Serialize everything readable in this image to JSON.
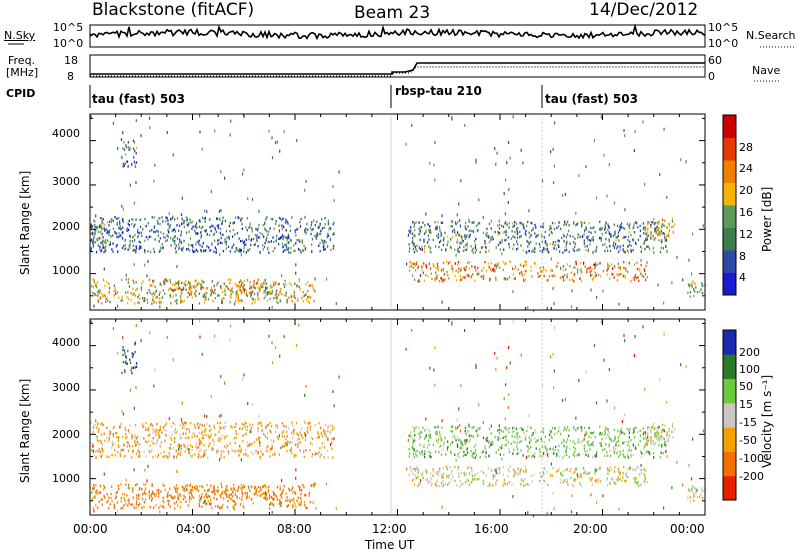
{
  "header": {
    "station": "Blackstone (fitACF)",
    "beam": "Beam 23",
    "date": "14/Dec/2012"
  },
  "noise_panel": {
    "left_label": "N.Sky",
    "right_label": "N.Search",
    "left_ticks": [
      "10^5",
      "10^0"
    ],
    "right_ticks": [
      "10^5",
      "10^0"
    ]
  },
  "freq_panel": {
    "left_label_line1": "Freq.",
    "left_label_line2": "[MHz]",
    "right_label": "Nave",
    "left_ticks": [
      "18",
      "8"
    ],
    "right_ticks": [
      "60",
      "0"
    ]
  },
  "cpid": {
    "label": "CPID",
    "segments": [
      {
        "name": "tau (fast) 503",
        "start_hour": 0.0
      },
      {
        "name": "rbsp-tau 210",
        "start_hour": 12.0
      },
      {
        "name": "tau (fast) 503",
        "start_hour": 18.0
      }
    ]
  },
  "power_panel": {
    "ylabel": "Slant Range [km]",
    "yticks": [
      "4000",
      "3000",
      "2000",
      "1000"
    ],
    "colorbar_label": "Power [dB]",
    "colorbar_ticks": [
      "28",
      "24",
      "20",
      "16",
      "12",
      "8",
      "4"
    ]
  },
  "velocity_panel": {
    "ylabel": "Slant Range [km]",
    "yticks": [
      "4000",
      "3000",
      "2000",
      "1000"
    ],
    "colorbar_label": "Velocity [m s⁻¹]",
    "colorbar_ticks": [
      "200",
      "100",
      "50",
      "15",
      "-15",
      "-50",
      "-100",
      "-200"
    ]
  },
  "xaxis": {
    "label": "Time UT",
    "ticks": [
      "00:00",
      "04:00",
      "08:00",
      "12:00",
      "16:00",
      "20:00",
      "00:00"
    ]
  },
  "chart_data": [
    {
      "type": "heatmap",
      "title": "Blackstone (fitACF) Beam 23 14/Dec/2012",
      "xlabel": "Time UT",
      "ylabel": "Slant Range [km]",
      "xlim_hours": [
        0,
        24
      ],
      "ylim_km": [
        180,
        4600
      ],
      "colorbar": "Power [dB]",
      "clim": [
        0,
        30
      ],
      "regions": [
        {
          "t0": 0.0,
          "t1": 8.8,
          "r0": 350,
          "r1": 900,
          "value": 16
        },
        {
          "t0": 3.2,
          "t1": 7.2,
          "r0": 550,
          "r1": 850,
          "value": 19
        },
        {
          "t0": 0.0,
          "t1": 9.5,
          "r0": 1500,
          "r1": 2300,
          "value": 8
        },
        {
          "t0": 0.0,
          "t1": 0.8,
          "r0": 1700,
          "r1": 2200,
          "value": 12
        },
        {
          "t0": 1.2,
          "t1": 1.8,
          "r0": 3400,
          "r1": 4100,
          "value": 9
        },
        {
          "t0": 12.4,
          "t1": 21.8,
          "r0": 850,
          "r1": 1300,
          "value": 20
        },
        {
          "t0": 12.4,
          "t1": 22.5,
          "r0": 1500,
          "r1": 2200,
          "value": 9
        },
        {
          "t0": 21.6,
          "t1": 22.8,
          "r0": 1800,
          "r1": 2300,
          "value": 18
        },
        {
          "t0": 23.3,
          "t1": 24.0,
          "r0": 500,
          "r1": 900,
          "value": 14
        }
      ]
    },
    {
      "type": "heatmap",
      "title": "Blackstone (fitACF) Beam 23 14/Dec/2012",
      "xlabel": "Time UT",
      "ylabel": "Slant Range [km]",
      "xlim_hours": [
        0,
        24
      ],
      "ylim_km": [
        180,
        4600
      ],
      "colorbar": "Velocity [m s⁻¹]",
      "clim": [
        -250,
        250
      ],
      "regions": [
        {
          "t0": 0.0,
          "t1": 8.8,
          "r0": 350,
          "r1": 900,
          "value": -60
        },
        {
          "t0": 3.2,
          "t1": 7.2,
          "r0": 550,
          "r1": 850,
          "value": -70
        },
        {
          "t0": 0.0,
          "t1": 9.5,
          "r0": 1500,
          "r1": 2300,
          "value": -30
        },
        {
          "t0": 1.2,
          "t1": 1.8,
          "r0": 3400,
          "r1": 4100,
          "value": 150
        },
        {
          "t0": 12.4,
          "t1": 21.8,
          "r0": 850,
          "r1": 1300,
          "value": 0
        },
        {
          "t0": 12.4,
          "t1": 22.5,
          "r0": 1500,
          "r1": 2200,
          "value": 30
        },
        {
          "t0": 21.6,
          "t1": 22.8,
          "r0": 1800,
          "r1": 2300,
          "value": 0
        },
        {
          "t0": 23.3,
          "t1": 24.0,
          "r0": 500,
          "r1": 900,
          "value": 0
        }
      ]
    }
  ],
  "colors": {
    "power_scale": [
      "#1a1ad0",
      "#2f49a8",
      "#3d7c4c",
      "#5b9c5c",
      "#f5b400",
      "#f08000",
      "#e23a00",
      "#cc0000"
    ],
    "velocity_scale": [
      "#1a2ab0",
      "#2a7a2a",
      "#6acc3a",
      "#c8c8c0",
      "#f5a000",
      "#f07000",
      "#e82000"
    ]
  }
}
